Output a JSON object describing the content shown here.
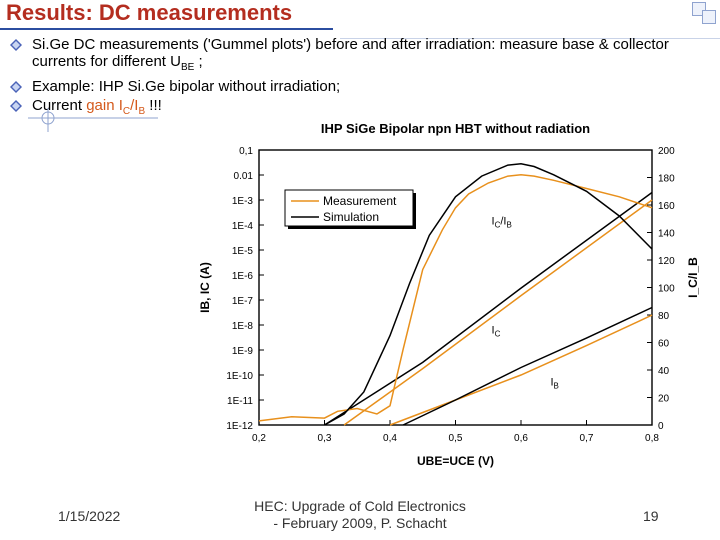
{
  "slide": {
    "title": "Results: DC measurements",
    "bullets": [
      {
        "pre": "Si.Ge DC measurements ('Gummel plots') before and after irradiation: measure base & collector currents for different U",
        "sub": "BE",
        "post": " ;"
      },
      {
        "text": "Example: IHP Si.Ge bipolar without irradiation;"
      },
      {
        "pre": "Current ",
        "accent": "gain I",
        "accent_sub1": "C",
        "accent_mid": "/I",
        "accent_sub2": "B",
        "post": " !!!"
      }
    ]
  },
  "footer": {
    "date": "1/15/2022",
    "center_line1": "HEC: Upgrade of Cold Electronics",
    "center_line2": "- February 2009, P. Schacht",
    "page": "19"
  },
  "chart_data": {
    "type": "line",
    "title": "IHP SiGe Bipolar npn HBT without radiation",
    "xlabel": "UBE=UCE (V)",
    "ylabel_left": "IB, IC (A)",
    "ylabel_right": "I_C/I_B",
    "xlim": [
      0.2,
      0.8
    ],
    "xticks": [
      "0,2",
      "0,3",
      "0,4",
      "0,5",
      "0,6",
      "0,7",
      "0,8"
    ],
    "ylim_left_log10": [
      -12,
      -1
    ],
    "yticks_left": [
      "1E-12",
      "1E-11",
      "1E-10",
      "1E-9",
      "1E-8",
      "1E-7",
      "1E-6",
      "1E-5",
      "1E-4",
      "1E-3",
      "0.01",
      "0,1"
    ],
    "ylim_right": [
      0,
      200
    ],
    "yticks_right": [
      "0",
      "20",
      "40",
      "60",
      "80",
      "100",
      "120",
      "140",
      "160",
      "180",
      "200"
    ],
    "legend": {
      "position": "top-left",
      "entries": [
        "Measurement",
        "Simulation"
      ]
    },
    "annotations": [
      "I_C/I_B",
      "I_C",
      "I_B"
    ],
    "colors": {
      "measurement": "#e8901c",
      "simulation": "#000000"
    },
    "series": [
      {
        "name": "Measurement",
        "quantity": "IC",
        "axis": "left",
        "unit": "A",
        "x": [
          0.33,
          0.45,
          0.6,
          0.8
        ],
        "y": [
          1e-12,
          1.8e-10,
          1.5e-07,
          0.001
        ]
      },
      {
        "name": "Simulation",
        "quantity": "IC",
        "axis": "left",
        "unit": "A",
        "x": [
          0.3,
          0.45,
          0.6,
          0.8
        ],
        "y": [
          1e-12,
          3.2e-10,
          3e-07,
          0.002
        ]
      },
      {
        "name": "Measurement",
        "quantity": "IB",
        "axis": "left",
        "unit": "A",
        "x": [
          0.4,
          0.5,
          0.6,
          0.7,
          0.8
        ],
        "y": [
          1e-12,
          1e-11,
          1e-10,
          1.5e-09,
          2.5e-08
        ]
      },
      {
        "name": "Simulation",
        "quantity": "IB",
        "axis": "left",
        "unit": "A",
        "x": [
          0.42,
          0.5,
          0.6,
          0.7,
          0.8
        ],
        "y": [
          1e-12,
          1e-11,
          2e-10,
          3e-09,
          5e-08
        ]
      },
      {
        "name": "Measurement",
        "quantity": "IC/IB",
        "axis": "right",
        "x": [
          0.2,
          0.25,
          0.3,
          0.32,
          0.35,
          0.38,
          0.4,
          0.42,
          0.45,
          0.48,
          0.5,
          0.52,
          0.55,
          0.58,
          0.6,
          0.62,
          0.65,
          0.7,
          0.75,
          0.8
        ],
        "y": [
          3,
          6,
          5,
          10,
          12,
          8,
          14,
          55,
          113,
          142,
          158,
          168,
          176,
          181,
          182,
          181,
          178,
          172,
          166,
          158
        ]
      },
      {
        "name": "Simulation",
        "quantity": "IC/IB",
        "axis": "right",
        "x": [
          0.3,
          0.33,
          0.36,
          0.4,
          0.43,
          0.46,
          0.5,
          0.54,
          0.58,
          0.6,
          0.62,
          0.65,
          0.7,
          0.75,
          0.8
        ],
        "y": [
          0,
          8,
          24,
          65,
          103,
          138,
          166,
          181,
          189,
          190,
          188,
          182,
          170,
          152,
          128
        ]
      }
    ]
  }
}
